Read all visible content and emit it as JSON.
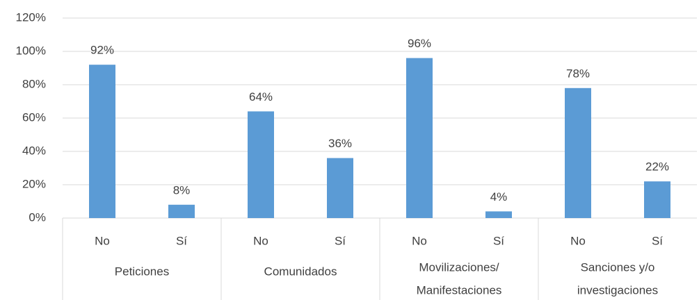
{
  "chart_data": {
    "type": "bar",
    "categories": [
      "No",
      "Sí",
      "No",
      "Sí",
      "No",
      "Sí",
      "No",
      "Sí"
    ],
    "groups": [
      [
        "Peticiones"
      ],
      [
        "Comunidados"
      ],
      [
        "Movilizaciones/",
        "Manifestaciones"
      ],
      [
        "Sanciones y/o",
        "investigaciones"
      ]
    ],
    "values": [
      92,
      8,
      64,
      36,
      96,
      4,
      78,
      22
    ],
    "value_labels": [
      "92%",
      "8%",
      "64%",
      "36%",
      "96%",
      "4%",
      "78%",
      "22%"
    ],
    "color": "#5b9bd5",
    "ylim": [
      0,
      120
    ],
    "yticks": [
      {
        "value": 0,
        "label": "0%"
      },
      {
        "value": 20,
        "label": "20%"
      },
      {
        "value": 40,
        "label": "40%"
      },
      {
        "value": 60,
        "label": "60%"
      },
      {
        "value": 80,
        "label": "80%"
      },
      {
        "value": 100,
        "label": "100%"
      },
      {
        "value": 120,
        "label": "120%"
      }
    ],
    "grid": true
  }
}
